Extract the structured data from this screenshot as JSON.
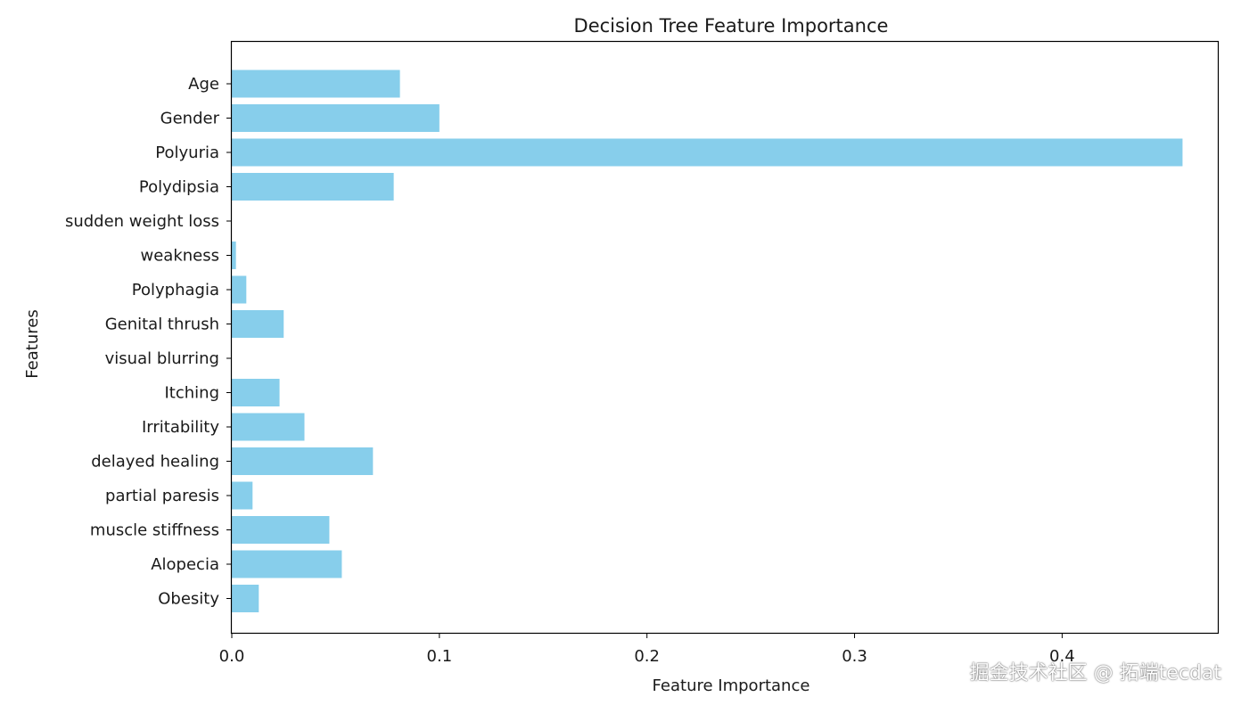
{
  "chart_data": {
    "type": "bar",
    "orientation": "horizontal",
    "title": "Decision Tree Feature Importance",
    "xlabel": "Feature Importance",
    "ylabel": "Features",
    "xlim": [
      0,
      0.475
    ],
    "xticks": [
      {
        "value": 0,
        "label": "0.0"
      },
      {
        "value": 0.1,
        "label": "0.1"
      },
      {
        "value": 0.2,
        "label": "0.2"
      },
      {
        "value": 0.3,
        "label": "0.3"
      },
      {
        "value": 0.4,
        "label": "0.4"
      }
    ],
    "categories": [
      "Age",
      "Gender",
      "Polyuria",
      "Polydipsia",
      "sudden weight loss",
      "weakness",
      "Polyphagia",
      "Genital thrush",
      "visual blurring",
      "Itching",
      "Irritability",
      "delayed healing",
      "partial paresis",
      "muscle stiffness",
      "Alopecia",
      "Obesity"
    ],
    "values": [
      0.081,
      0.1,
      0.458,
      0.078,
      0.0,
      0.002,
      0.007,
      0.025,
      0.0,
      0.023,
      0.035,
      0.068,
      0.01,
      0.047,
      0.053,
      0.013
    ],
    "bar_color": "#87ceeb",
    "grid": false,
    "legend": "none"
  },
  "watermark": "掘金技术社区 @ 拓端tecdat"
}
